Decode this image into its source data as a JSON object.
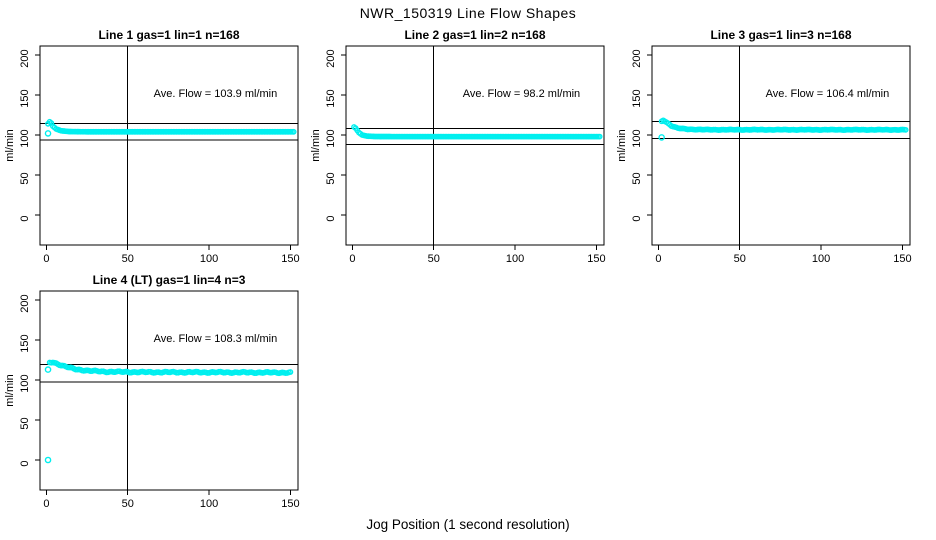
{
  "title": "NWR_150319  Line Flow Shapes",
  "xlabel": "Jog Position (1 second resolution)",
  "colors": {
    "points": "#00EFEF",
    "axis": "#000000",
    "background": "#FFFFFF"
  },
  "chart_data": [
    {
      "type": "scatter",
      "title": "Line 1 gas=1 lin=1 n=168",
      "annotation": "Ave. Flow =  103.9  ml/min",
      "ave_flow": 103.9,
      "n": 168,
      "ylabel": "ml/min",
      "x_ticks": [
        0,
        50,
        100,
        150
      ],
      "y_ticks": [
        0,
        50,
        100,
        150,
        200
      ],
      "xlim": [
        0,
        155
      ],
      "ylim": [
        0,
        200
      ],
      "vline_x": 50,
      "hlines": [
        114.3,
        93.5
      ],
      "outliers": [
        [
          1,
          102
        ]
      ],
      "band": [
        [
          1,
          114
        ],
        [
          2,
          116.5
        ],
        [
          3,
          115
        ],
        [
          4,
          111
        ],
        [
          6,
          107.5
        ],
        [
          9,
          105.3
        ],
        [
          14,
          104.3
        ],
        [
          25,
          104
        ],
        [
          152,
          104
        ]
      ],
      "noise_amp": 0,
      "x_end": 152
    },
    {
      "type": "scatter",
      "title": "Line 2 gas=1 lin=2 n=168",
      "annotation": "Ave. Flow =  98.2  ml/min",
      "ave_flow": 98.2,
      "n": 168,
      "ylabel": "ml/min",
      "x_ticks": [
        0,
        50,
        100,
        150
      ],
      "y_ticks": [
        0,
        50,
        100,
        150,
        200
      ],
      "xlim": [
        0,
        155
      ],
      "ylim": [
        0,
        200
      ],
      "vline_x": 50,
      "hlines": [
        108.0,
        88.4
      ],
      "outliers": [],
      "band": [
        [
          1,
          110
        ],
        [
          2,
          108.5
        ],
        [
          4,
          103
        ],
        [
          6,
          100
        ],
        [
          9,
          98.6
        ],
        [
          14,
          98.1
        ],
        [
          25,
          98
        ],
        [
          152,
          98
        ]
      ],
      "noise_amp": 0,
      "x_end": 152
    },
    {
      "type": "scatter",
      "title": "Line 3 gas=1 lin=3 n=168",
      "annotation": "Ave. Flow =  106.4  ml/min",
      "ave_flow": 106.4,
      "n": 168,
      "ylabel": "ml/min",
      "x_ticks": [
        0,
        50,
        100,
        150
      ],
      "y_ticks": [
        0,
        50,
        100,
        150,
        200
      ],
      "xlim": [
        0,
        155
      ],
      "ylim": [
        0,
        200
      ],
      "vline_x": 50,
      "hlines": [
        117.0,
        95.8
      ],
      "outliers": [
        [
          2,
          97
        ]
      ],
      "band": [
        [
          2,
          117
        ],
        [
          3,
          118.5
        ],
        [
          5,
          116
        ],
        [
          8,
          111.5
        ],
        [
          12,
          108.5
        ],
        [
          18,
          107.2
        ],
        [
          30,
          106.6
        ],
        [
          152,
          106.5
        ]
      ],
      "noise_amp": 0.4,
      "x_end": 152
    },
    {
      "type": "scatter",
      "title": "Line 4 (LT) gas=1 lin=4 n=3",
      "annotation": "Ave. Flow =  108.3  ml/min",
      "ave_flow": 108.3,
      "n": 3,
      "ylabel": "ml/min",
      "x_ticks": [
        0,
        50,
        100,
        150
      ],
      "y_ticks": [
        0,
        50,
        100,
        150,
        200
      ],
      "xlim": [
        0,
        155
      ],
      "ylim": [
        0,
        200
      ],
      "vline_x": 50,
      "hlines": [
        119.1,
        97.5
      ],
      "outliers": [
        [
          1,
          0
        ],
        [
          1,
          113
        ]
      ],
      "band": [
        [
          2,
          121.5
        ],
        [
          4,
          122.5
        ],
        [
          7,
          120
        ],
        [
          12,
          116.5
        ],
        [
          18,
          113.5
        ],
        [
          26,
          111.5
        ],
        [
          38,
          110.3
        ],
        [
          60,
          109.8
        ],
        [
          100,
          109.6
        ],
        [
          150,
          109.2
        ]
      ],
      "noise_amp": 0.9,
      "x_end": 150
    }
  ]
}
